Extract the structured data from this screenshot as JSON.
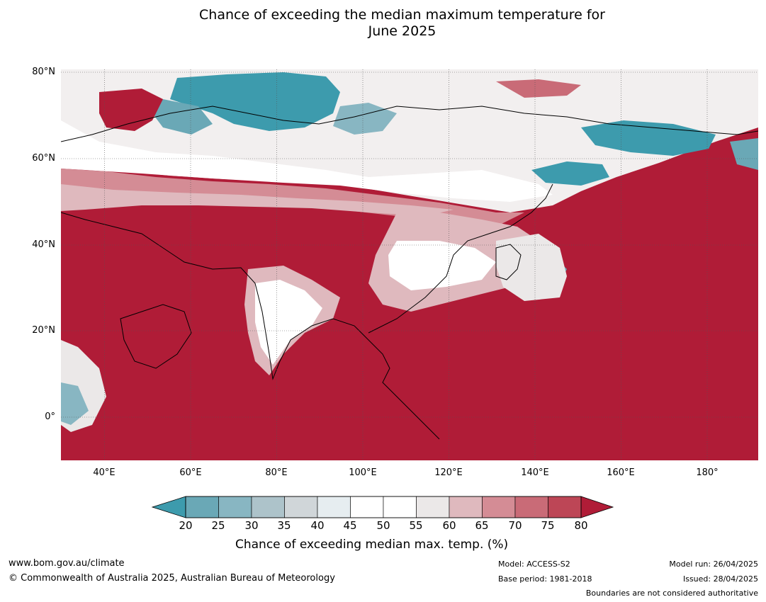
{
  "title": {
    "line1": "Chance of exceeding the median maximum temperature for",
    "line2": "June 2025"
  },
  "lat_labels": [
    "80°N",
    "60°N",
    "40°N",
    "20°N",
    "0°"
  ],
  "lon_labels": [
    "40°E",
    "60°E",
    "80°E",
    "100°E",
    "120°E",
    "140°E",
    "160°E",
    "180°"
  ],
  "colorbar": {
    "ticks": [
      "20",
      "25",
      "30",
      "35",
      "40",
      "45",
      "50",
      "55",
      "60",
      "65",
      "70",
      "75",
      "80"
    ],
    "colors": [
      "#6aa8b6",
      "#88b6c2",
      "#adc3ca",
      "#d0d6d9",
      "#e6edf0",
      "#ffffff",
      "#ffffff",
      "#ebe8e8",
      "#dfb9be",
      "#d48c95",
      "#c96b77",
      "#bd4656"
    ],
    "under_color": "#3d9bad",
    "over_color": "#b01c37",
    "label": "Chance of exceeding median max. temp. (%)"
  },
  "footer": {
    "website": "www.bom.gov.au/climate",
    "copyright": "© Commonwealth of Australia 2025, Australian Bureau of Meteorology",
    "model": "Model: ACCESS-S2",
    "base_period": "Base period: 1981-2018",
    "model_run": "Model run: 26/04/2025",
    "issued": "Issued: 28/04/2025",
    "disclaimer": "Boundaries are not considered authoritative"
  }
}
